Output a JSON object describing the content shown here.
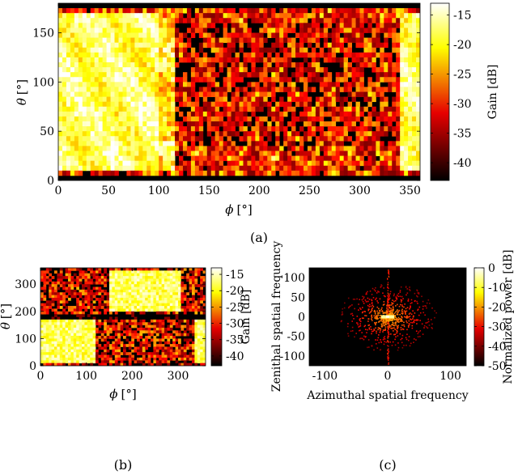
{
  "chart_data": [
    {
      "id": "a",
      "type": "heatmap",
      "panel_label": "(a)",
      "xlabel_symbol": "ϕ",
      "xlabel_unit": "[°]",
      "ylabel_symbol": "θ",
      "ylabel_unit": "[°]",
      "xlim": [
        0,
        360
      ],
      "ylim": [
        0,
        180
      ],
      "x_ticks": [
        0,
        50,
        100,
        150,
        200,
        250,
        300,
        350
      ],
      "y_ticks": [
        0,
        50,
        100,
        150
      ],
      "colorbar": {
        "label": "Gain [dB]",
        "range": [
          -43,
          -13
        ],
        "ticks": [
          -15,
          -20,
          -25,
          -30,
          -35,
          -40
        ],
        "colormap": "hot"
      }
    },
    {
      "id": "b",
      "type": "heatmap",
      "panel_label": "(b)",
      "xlabel_symbol": "ϕ",
      "xlabel_unit": "[°]",
      "ylabel_symbol": "θ",
      "ylabel_unit": "[°]",
      "xlim": [
        0,
        360
      ],
      "ylim": [
        0,
        360
      ],
      "x_ticks": [
        0,
        100,
        200,
        300
      ],
      "y_ticks": [
        0,
        100,
        200,
        300
      ],
      "colorbar": {
        "label": "Gain [dB]",
        "range": [
          -43,
          -13
        ],
        "ticks": [
          -15,
          -20,
          -25,
          -30,
          -35,
          -40
        ],
        "colormap": "hot"
      }
    },
    {
      "id": "c",
      "type": "heatmap",
      "panel_label": "(c)",
      "xlabel": "Azimuthal spatial frequency",
      "ylabel": "Zenithal spatial frequency",
      "xlim": [
        -125,
        125
      ],
      "ylim": [
        -125,
        125
      ],
      "x_ticks": [
        -100,
        0,
        100
      ],
      "y_ticks": [
        -100,
        -50,
        0,
        50,
        100
      ],
      "colorbar": {
        "label": "Normalized power [dB]",
        "range": [
          -50,
          0
        ],
        "ticks": [
          0,
          -10,
          -20,
          -30,
          -40,
          -50
        ],
        "colormap": "hot"
      }
    }
  ]
}
